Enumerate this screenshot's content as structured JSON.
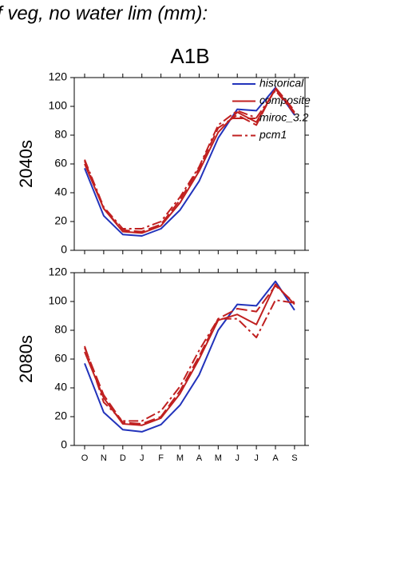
{
  "header": {
    "title": "f veg, no water lim (mm):",
    "subtitle": "A1B"
  },
  "chart_data": [
    {
      "type": "line",
      "panel_label": "2040s",
      "legend": "upper right",
      "ylim": [
        0,
        120
      ],
      "yticks": [
        0,
        20,
        40,
        60,
        80,
        100,
        120
      ],
      "series": [
        {
          "name": "historical",
          "color": "#2233bb",
          "dash": "solid",
          "values": [
            57,
            24,
            11,
            10,
            15,
            28,
            48,
            78,
            98,
            97,
            113,
            94
          ]
        },
        {
          "name": "composite",
          "color": "#c02020",
          "dash": "solid",
          "values": [
            60,
            29,
            13,
            12,
            17,
            33,
            55,
            82,
            96,
            89,
            112,
            96
          ]
        },
        {
          "name": "miroc_3.2",
          "color": "#c02020",
          "dash": "long",
          "values": [
            62,
            29,
            14,
            13,
            18,
            35,
            57,
            85,
            94,
            87,
            113,
            97
          ]
        },
        {
          "name": "pcm1",
          "color": "#c02020",
          "dash": "dashdot",
          "values": [
            63,
            30,
            15,
            15,
            20,
            37,
            58,
            87,
            97,
            92,
            111,
            95
          ]
        }
      ]
    },
    {
      "type": "line",
      "panel_label": "2080s",
      "categories": [
        "O",
        "N",
        "D",
        "J",
        "F",
        "M",
        "A",
        "M",
        "J",
        "J",
        "A",
        "S"
      ],
      "ylim": [
        0,
        120
      ],
      "yticks": [
        0,
        20,
        40,
        60,
        80,
        100,
        120
      ],
      "series": [
        {
          "color": "#2233bb",
          "dash": "solid",
          "values": [
            57,
            23,
            11,
            9.5,
            14.5,
            28,
            49,
            80,
            98,
            97,
            114,
            94
          ]
        },
        {
          "color": "#c02020",
          "dash": "solid",
          "values": [
            65,
            33,
            15,
            14,
            19,
            36,
            60,
            87,
            91,
            84,
            112,
            98
          ]
        },
        {
          "color": "#c02020",
          "dash": "long",
          "values": [
            68,
            35,
            16,
            15,
            20,
            38,
            62,
            88,
            95,
            93,
            111,
            99
          ]
        },
        {
          "color": "#c02020",
          "dash": "dashdot",
          "values": [
            69,
            30,
            17,
            17,
            24,
            41,
            66,
            88,
            88,
            75,
            101,
            99
          ]
        }
      ]
    }
  ]
}
